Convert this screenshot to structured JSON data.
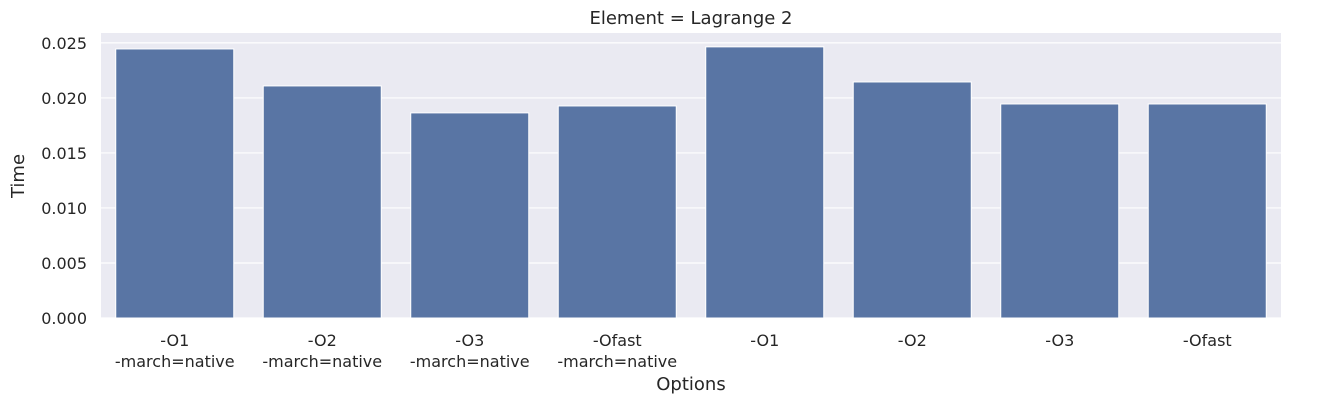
{
  "chart_data": {
    "type": "bar",
    "title": "Element = Lagrange 2",
    "x_label": "Options",
    "y_label": "Time",
    "categories": [
      "-O1\n-march=native",
      "-O2\n-march=native",
      "-O3\n-march=native",
      "-Ofast\n-march=native",
      "-O1",
      "-O2",
      "-O3",
      "-Ofast"
    ],
    "values": [
      0.02445,
      0.02109,
      0.01864,
      0.01927,
      0.02464,
      0.02145,
      0.01945,
      0.01945
    ],
    "color": "#5975a4",
    "ylim": [
      0,
      0.0259
    ],
    "yticks": [
      {
        "value": 0,
        "label": "0.000"
      },
      {
        "value": 0.005,
        "label": "0.005"
      },
      {
        "value": 0.01,
        "label": "0.010"
      },
      {
        "value": 0.015,
        "label": "0.015"
      },
      {
        "value": 0.02,
        "label": "0.020"
      },
      {
        "value": 0.025,
        "label": "0.025"
      }
    ],
    "grid": true
  }
}
